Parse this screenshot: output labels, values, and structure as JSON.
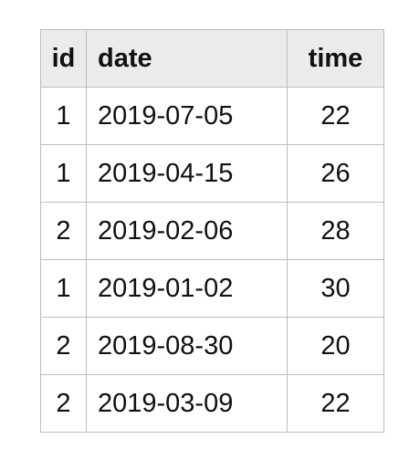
{
  "table": {
    "headers": [
      "id",
      "date",
      "time"
    ],
    "rows": [
      {
        "id": "1",
        "date": "2019-07-05",
        "time": "22"
      },
      {
        "id": "1",
        "date": "2019-04-15",
        "time": "26"
      },
      {
        "id": "2",
        "date": "2019-02-06",
        "time": "28"
      },
      {
        "id": "1",
        "date": "2019-01-02",
        "time": "30"
      },
      {
        "id": "2",
        "date": "2019-08-30",
        "time": "20"
      },
      {
        "id": "2",
        "date": "2019-03-09",
        "time": "22"
      }
    ]
  },
  "colors": {
    "header_bg": "#ebebeb",
    "border": "#bdbdbd",
    "text": "#111111"
  }
}
